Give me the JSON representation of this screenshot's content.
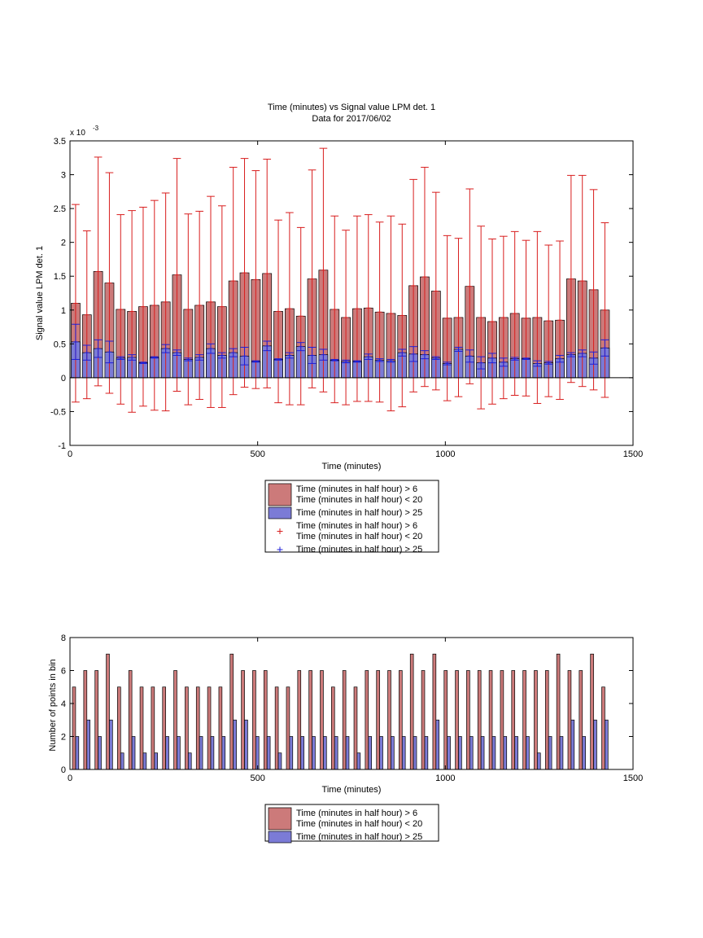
{
  "chart_data": [
    {
      "type": "bar",
      "title": "Time (minutes) vs Signal value LPM det. 1",
      "subtitle": "Data for 2017/06/02",
      "xlabel": "Time (minutes)",
      "ylabel": "Signal value LPM det. 1",
      "exponent_label": "x 10",
      "exponent_power": "-3",
      "xlim": [
        0,
        1500
      ],
      "ylim": [
        -1,
        3.5
      ],
      "xticks": [
        "0",
        "500",
        "1000",
        "1500"
      ],
      "yticks": [
        "-1",
        "-0.5",
        "0",
        "0.5",
        "1",
        "1.5",
        "2",
        "2.5",
        "3",
        "3.5"
      ],
      "grid": false,
      "legend_position": "bottom-center",
      "legend": [
        {
          "label": "Time (minutes in half hour) > 6\nTime (minutes in half hour) < 20",
          "kind": "bar",
          "color": "#cc7a7a"
        },
        {
          "label": "Time (minutes in half hour) > 25",
          "kind": "bar",
          "color": "#7b7bd6"
        },
        {
          "label": "Time (minutes in half hour) > 6\nTime (minutes in half hour) < 20",
          "kind": "marker",
          "color": "#d81e1e"
        },
        {
          "label": "Time (minutes in half hour) > 25",
          "kind": "marker",
          "color": "#1e1ed8"
        }
      ],
      "x": [
        15,
        45,
        75,
        105,
        135,
        165,
        195,
        225,
        255,
        285,
        315,
        345,
        375,
        405,
        435,
        465,
        495,
        525,
        555,
        585,
        615,
        645,
        675,
        705,
        735,
        765,
        795,
        825,
        855,
        885,
        915,
        945,
        975,
        1005,
        1035,
        1065,
        1095,
        1125,
        1155,
        1185,
        1215,
        1245,
        1275,
        1305,
        1335,
        1365,
        1395,
        1425
      ],
      "series": [
        {
          "name": "Time (minutes in half hour) > 6\nTime (minutes in half hour) < 20",
          "color": "#cc7a7a",
          "error_color": "#d81e1e",
          "values": [
            1.1,
            0.93,
            1.57,
            1.4,
            1.01,
            0.98,
            1.05,
            1.07,
            1.12,
            1.52,
            1.01,
            1.07,
            1.12,
            1.05,
            1.43,
            1.55,
            1.45,
            1.54,
            0.98,
            1.02,
            0.91,
            1.46,
            1.59,
            1.01,
            0.89,
            1.02,
            1.03,
            0.97,
            0.95,
            0.92,
            1.36,
            1.49,
            1.28,
            0.88,
            0.89,
            1.35,
            0.89,
            0.83,
            0.89,
            0.95,
            0.88,
            0.89,
            0.84,
            0.85,
            1.46,
            1.43,
            1.3,
            1.0
          ],
          "error": [
            1.46,
            1.24,
            1.69,
            1.63,
            1.4,
            1.49,
            1.47,
            1.55,
            1.61,
            1.72,
            1.41,
            1.39,
            1.56,
            1.49,
            1.68,
            1.69,
            1.61,
            1.69,
            1.35,
            1.42,
            1.31,
            1.61,
            1.8,
            1.38,
            1.29,
            1.37,
            1.38,
            1.33,
            1.44,
            1.35,
            1.57,
            1.62,
            1.46,
            1.22,
            1.17,
            1.44,
            1.35,
            1.22,
            1.2,
            1.21,
            1.15,
            1.27,
            1.12,
            1.17,
            1.53,
            1.56,
            1.48,
            1.29
          ]
        },
        {
          "name": "Time (minutes in half hour) > 25",
          "color": "#7b7bd6",
          "error_color": "#1e1ed8",
          "values": [
            0.53,
            0.37,
            0.43,
            0.38,
            0.29,
            0.3,
            0.22,
            0.3,
            0.43,
            0.37,
            0.27,
            0.3,
            0.43,
            0.33,
            0.37,
            0.32,
            0.24,
            0.47,
            0.27,
            0.33,
            0.46,
            0.33,
            0.34,
            0.26,
            0.24,
            0.24,
            0.31,
            0.26,
            0.25,
            0.37,
            0.35,
            0.34,
            0.29,
            0.21,
            0.42,
            0.32,
            0.22,
            0.29,
            0.23,
            0.28,
            0.28,
            0.21,
            0.22,
            0.28,
            0.34,
            0.36,
            0.29,
            0.44
          ],
          "error": [
            0.26,
            0.11,
            0.13,
            0.16,
            0.02,
            0.04,
            0.01,
            0.01,
            0.06,
            0.04,
            0.02,
            0.04,
            0.07,
            0.04,
            0.06,
            0.13,
            0.01,
            0.07,
            0.01,
            0.04,
            0.06,
            0.12,
            0.08,
            0.01,
            0.02,
            0.01,
            0.04,
            0.02,
            0.02,
            0.05,
            0.11,
            0.06,
            0.02,
            0.02,
            0.03,
            0.09,
            0.09,
            0.07,
            0.06,
            0.02,
            0.01,
            0.04,
            0.02,
            0.05,
            0.03,
            0.05,
            0.09,
            0.12
          ]
        }
      ]
    },
    {
      "type": "bar",
      "title": "",
      "xlabel": "Time (minutes)",
      "ylabel": "Number of points in bin",
      "xlim": [
        0,
        1500
      ],
      "ylim": [
        0,
        8
      ],
      "xticks": [
        "0",
        "500",
        "1000",
        "1500"
      ],
      "yticks": [
        "0",
        "2",
        "4",
        "6",
        "8"
      ],
      "grid": false,
      "legend_position": "bottom-center",
      "legend": [
        {
          "label": "Time (minutes in half hour) > 6\nTime (minutes in half hour) < 20",
          "kind": "bar",
          "color": "#cc7a7a"
        },
        {
          "label": "Time (minutes in half hour) > 25",
          "kind": "bar",
          "color": "#7b7bd6"
        }
      ],
      "x": [
        15,
        45,
        75,
        105,
        135,
        165,
        195,
        225,
        255,
        285,
        315,
        345,
        375,
        405,
        435,
        465,
        495,
        525,
        555,
        585,
        615,
        645,
        675,
        705,
        735,
        765,
        795,
        825,
        855,
        885,
        915,
        945,
        975,
        1005,
        1035,
        1065,
        1095,
        1125,
        1155,
        1185,
        1215,
        1245,
        1275,
        1305,
        1335,
        1365,
        1395,
        1425
      ],
      "series": [
        {
          "name": "Time (minutes in half hour) > 6\nTime (minutes in half hour) < 20",
          "color": "#cc7a7a",
          "values": [
            5,
            6,
            6,
            7,
            5,
            6,
            5,
            5,
            5,
            6,
            5,
            5,
            5,
            5,
            7,
            6,
            6,
            6,
            5,
            5,
            6,
            6,
            6,
            5,
            6,
            5,
            6,
            6,
            6,
            6,
            7,
            6,
            7,
            6,
            6,
            6,
            6,
            6,
            6,
            6,
            6,
            6,
            6,
            7,
            6,
            6,
            7,
            5
          ]
        },
        {
          "name": "Time (minutes in half hour) > 25",
          "color": "#7b7bd6",
          "values": [
            2,
            3,
            2,
            3,
            1,
            2,
            1,
            1,
            2,
            2,
            1,
            2,
            2,
            2,
            3,
            3,
            2,
            2,
            1,
            2,
            2,
            2,
            2,
            2,
            2,
            1,
            2,
            2,
            2,
            2,
            2,
            2,
            3,
            2,
            2,
            2,
            2,
            2,
            2,
            2,
            2,
            1,
            2,
            2,
            3,
            2,
            3,
            3
          ]
        }
      ]
    }
  ]
}
